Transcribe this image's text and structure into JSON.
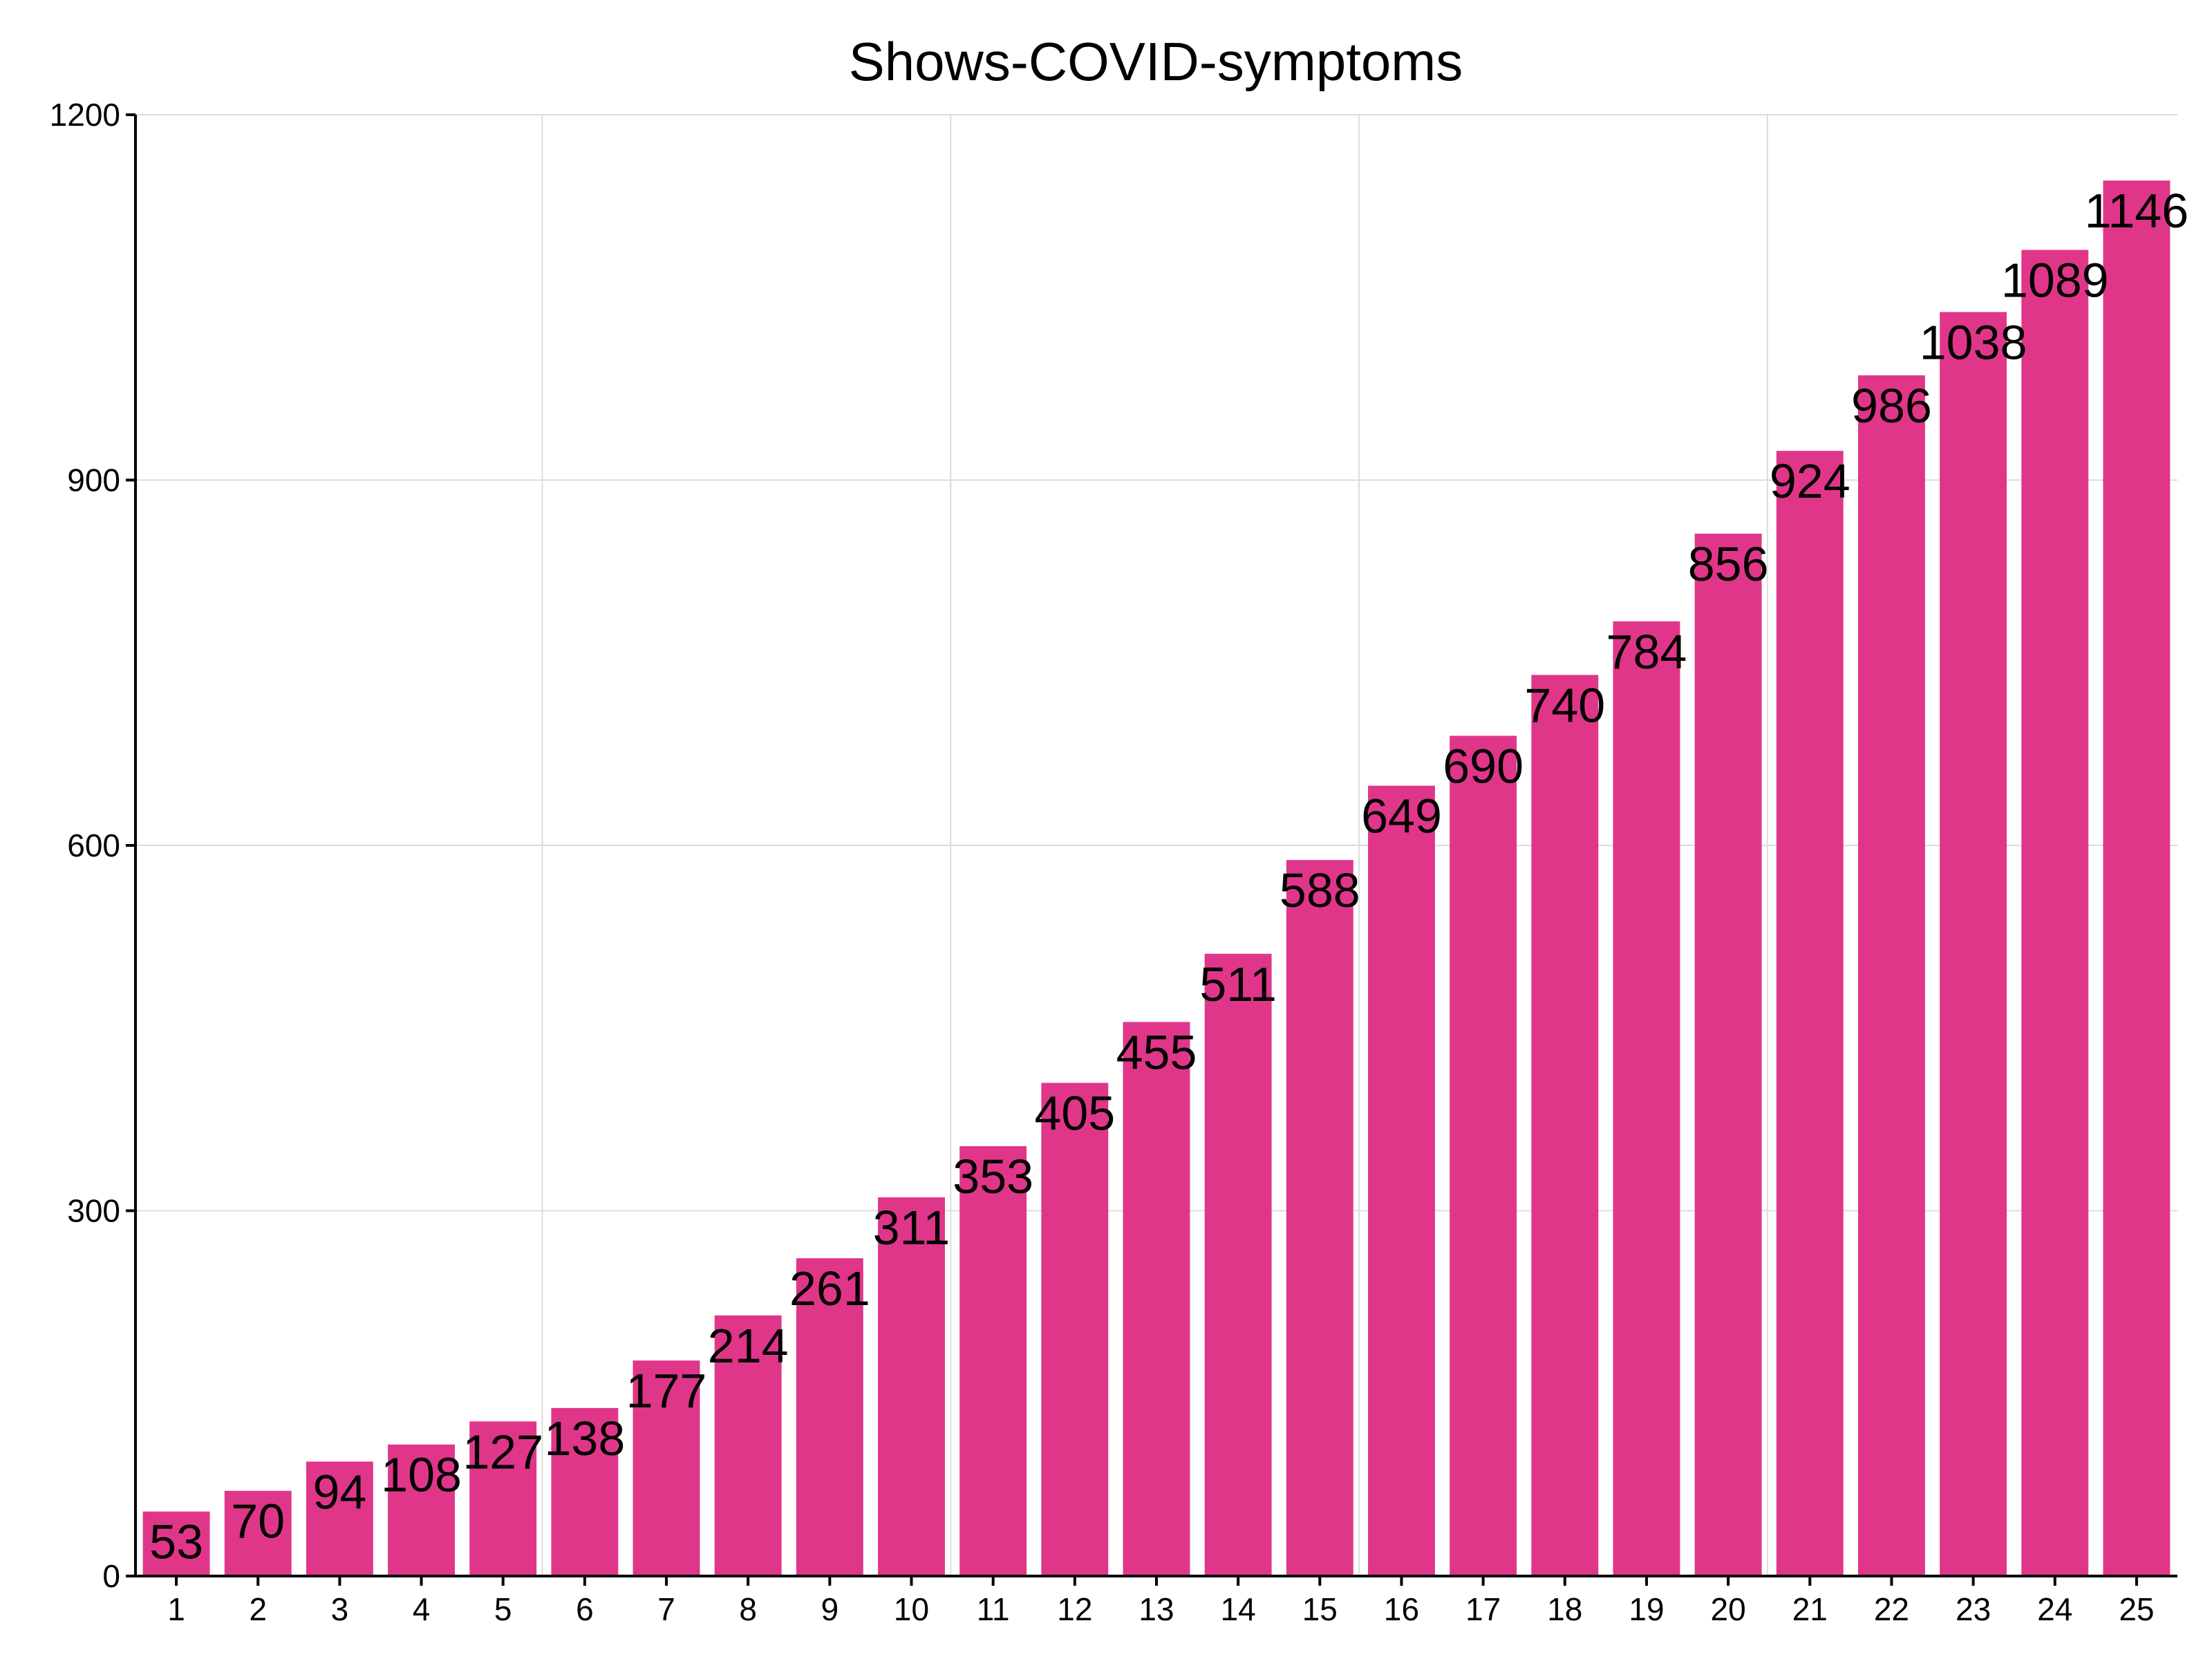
{
  "chart_data": {
    "type": "bar",
    "title": "Shows-COVID-symptoms",
    "xlabel": "",
    "ylabel": "",
    "categories": [
      "1",
      "2",
      "3",
      "4",
      "5",
      "6",
      "7",
      "8",
      "9",
      "10",
      "11",
      "12",
      "13",
      "14",
      "15",
      "16",
      "17",
      "18",
      "19",
      "20",
      "21",
      "22",
      "23",
      "24",
      "25"
    ],
    "values": [
      53,
      70,
      94,
      108,
      127,
      138,
      177,
      214,
      261,
      311,
      353,
      405,
      455,
      511,
      588,
      649,
      690,
      740,
      784,
      856,
      924,
      986,
      1038,
      1089,
      1146
    ],
    "ylim": [
      0,
      1200
    ],
    "yticks": [
      0,
      300,
      600,
      900,
      1200
    ],
    "grid": true,
    "legend": "none",
    "bar_color": "#e0368a"
  }
}
